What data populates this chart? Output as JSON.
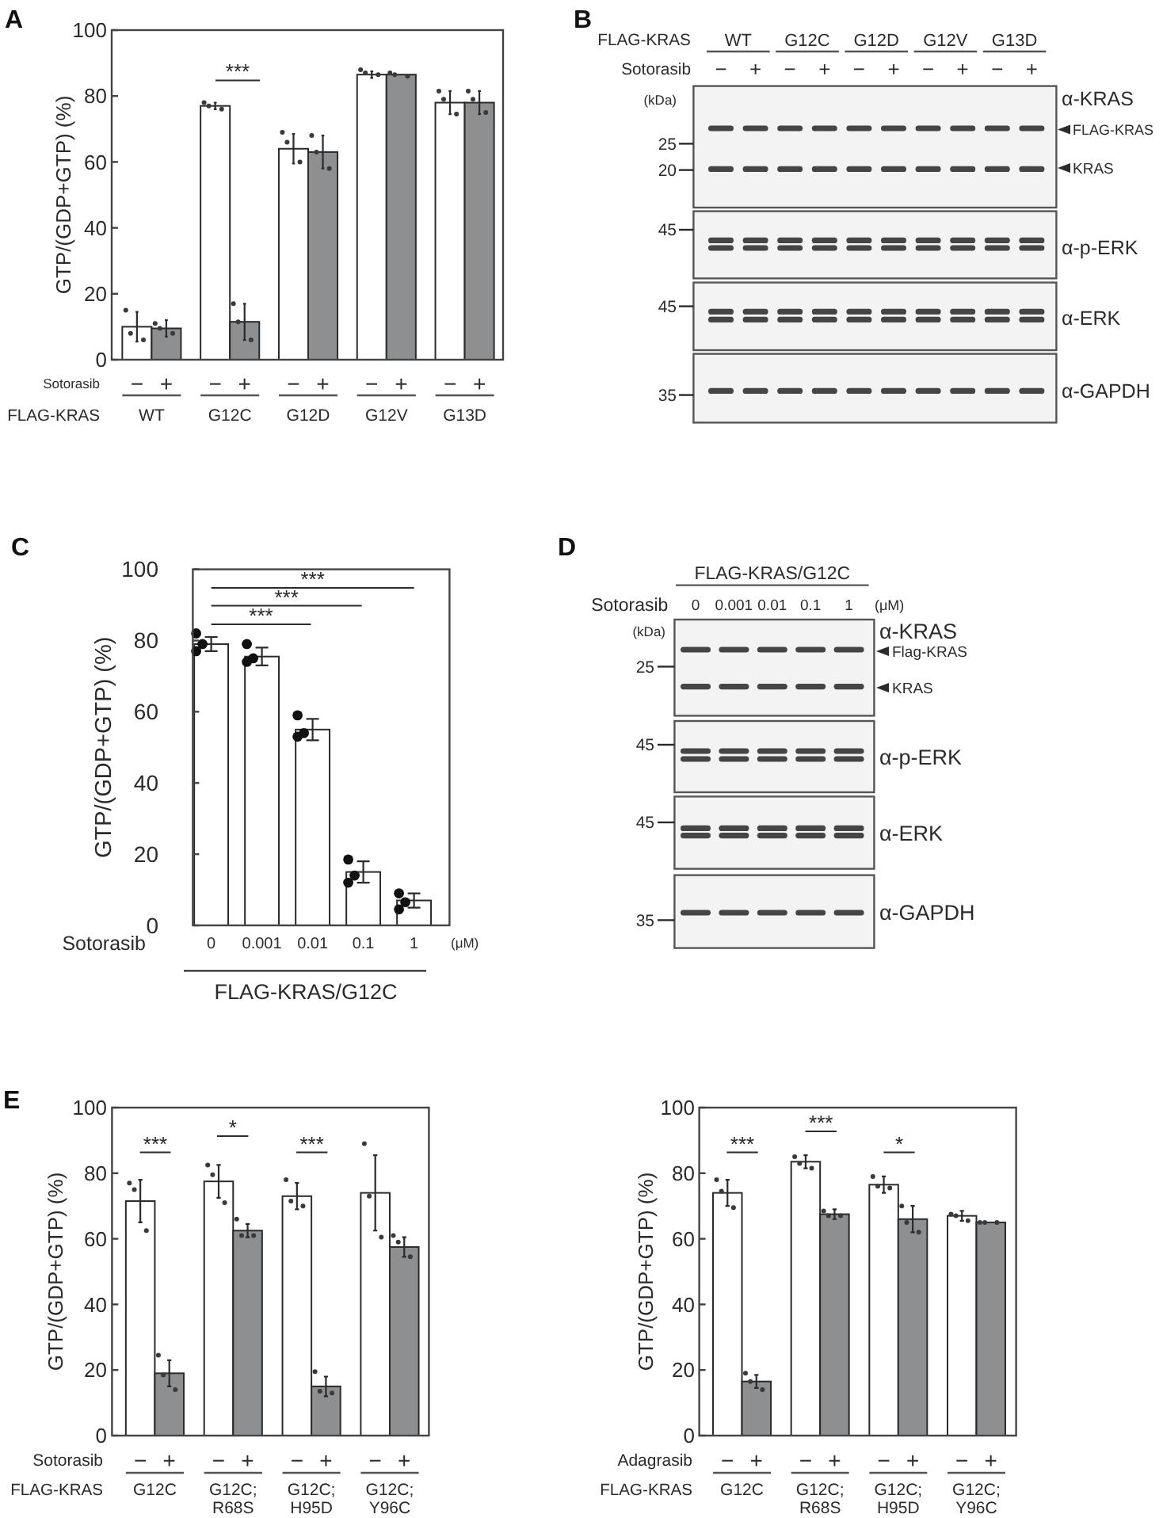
{
  "chart_data": [
    {
      "type": "bar",
      "title": "A",
      "ylabel": "GTP/(GDP+GTP) (%)",
      "xlabel": "FLAG-KRAS",
      "legend_title": "Sotorasib",
      "categories": [
        "WT",
        "G12C",
        "G12D",
        "G12V",
        "G13D"
      ],
      "ylim": [
        0,
        100
      ],
      "yticks": [
        0,
        20,
        40,
        60,
        80,
        100
      ],
      "marker": "circle",
      "series": [
        {
          "name": "−",
          "type": "bar",
          "color": "#ffffff",
          "values": [
            10,
            77,
            64,
            86.5,
            78
          ],
          "errors": [
            4.5,
            1,
            4.5,
            1,
            3.5
          ]
        },
        {
          "name": "+",
          "type": "bar",
          "color": "#8e8f91",
          "values": [
            9.5,
            11.5,
            63,
            86.5,
            78
          ],
          "errors": [
            2.5,
            5.5,
            5,
            null,
            3.5
          ]
        },
        {
          "type": "scatter",
          "color": "#3a3a3a",
          "x": [
            "WT",
            "WT",
            "WT",
            "G12C",
            "G12C",
            "G12C",
            "G12D",
            "G12D",
            "G12D",
            "G12V",
            "G12V",
            "G12V",
            "G13D",
            "G13D",
            "G13D"
          ],
          "values": [
            15,
            8,
            6,
            78,
            77,
            76,
            69,
            66,
            60,
            88,
            87,
            86.5,
            81.5,
            79,
            74.5
          ]
        },
        {
          "type": "scatter",
          "color": "#3a3a3a",
          "x": [
            "WT",
            "WT",
            "WT",
            "G12C",
            "G12C",
            "G12C",
            "G12D",
            "G12D",
            "G12D",
            "G12V",
            "G12V",
            "G12V",
            "G13D",
            "G13D",
            "G13D"
          ],
          "values": [
            11,
            9.5,
            8,
            17,
            11.5,
            6,
            68,
            63,
            58,
            87,
            86.5,
            86,
            81.5,
            79,
            75
          ]
        }
      ],
      "annotations": [
        "***"
      ]
    },
    {
      "type": "other",
      "title": "B",
      "annotations": [
        "FLAG-KRAS",
        "WT",
        "G12C",
        "G12D",
        "G12V",
        "G13D",
        "Sotorasib",
        "−",
        "+",
        "−",
        "+",
        "−",
        "+",
        "−",
        "+",
        "−",
        "+",
        "(kDa)",
        "25",
        "20",
        "45",
        "45",
        "35",
        "α-KRAS",
        "FLAG-KRAS",
        "KRAS",
        "α-p-ERK",
        "α-ERK",
        "α-GAPDH"
      ]
    },
    {
      "type": "bar",
      "title": "C",
      "ylabel": "GTP/(GDP+GTP) (%)",
      "xlabel": "Sotorasib",
      "categories": [
        "0",
        "0.001",
        "0.01",
        "0.1",
        "1"
      ],
      "ylim": [
        0,
        100
      ],
      "yticks": [
        0,
        20,
        40,
        60,
        80,
        100
      ],
      "marker": "circle",
      "series": [
        {
          "type": "bar",
          "color": "#ffffff",
          "values": [
            79,
            75.5,
            55,
            15,
            7
          ],
          "errors": [
            2,
            2.5,
            3,
            3,
            2
          ]
        },
        {
          "type": "scatter",
          "color": "#111111",
          "x": [
            "0",
            "0",
            "0",
            "0.001",
            "0.001",
            "0.001",
            "0.01",
            "0.01",
            "0.01",
            "0.1",
            "0.1",
            "0.1",
            "1",
            "1",
            "1"
          ],
          "values": [
            82,
            79,
            77,
            79,
            75,
            74,
            59,
            54,
            53,
            18.5,
            14,
            12,
            9,
            6.5,
            4.5
          ]
        }
      ],
      "annotations": [
        "***",
        "***",
        "***",
        "(μM)",
        "FLAG-KRAS/G12C"
      ]
    },
    {
      "type": "other",
      "title": "D",
      "annotations": [
        "FLAG-KRAS/G12C",
        "Sotorasib",
        "0",
        "0.001",
        "0.01",
        "0.1",
        "1",
        "(μM)",
        "(kDa)",
        "25",
        "45",
        "45",
        "35",
        "α-KRAS",
        "Flag-KRAS",
        "KRAS",
        "α-p-ERK",
        "α-ERK",
        "α-GAPDH"
      ]
    },
    {
      "type": "bar",
      "title": "E",
      "ylabel": "GTP/(GDP+GTP) (%)",
      "xlabel": "FLAG-KRAS",
      "legend_title": "Sotorasib",
      "categories": [
        "G12C",
        "G12C; R68S",
        "G12C; H95D",
        "G12C; Y96C"
      ],
      "ylim": [
        0,
        100
      ],
      "yticks": [
        0,
        20,
        40,
        60,
        80,
        100
      ],
      "marker": "circle",
      "series": [
        {
          "name": "−",
          "type": "bar",
          "color": "#ffffff",
          "values": [
            71.5,
            77.5,
            73,
            74
          ],
          "errors": [
            6.5,
            5,
            4,
            11.5
          ]
        },
        {
          "name": "+",
          "type": "bar",
          "color": "#8e8f91",
          "values": [
            19,
            62.5,
            15,
            57.5
          ],
          "errors": [
            4,
            2,
            3,
            3
          ]
        },
        {
          "type": "scatter",
          "color": "#3a3a3a",
          "x": [
            "G12C",
            "G12C",
            "G12C",
            "G12C; R68S",
            "G12C; R68S",
            "G12C; R68S",
            "G12C; H95D",
            "G12C; H95D",
            "G12C; H95D",
            "G12C; Y96C",
            "G12C; Y96C",
            "G12C; Y96C"
          ],
          "values": [
            77,
            75,
            62.5,
            82.5,
            79.5,
            71,
            78,
            71.5,
            70,
            89,
            73,
            60.5
          ]
        },
        {
          "type": "scatter",
          "color": "#3a3a3a",
          "x": [
            "G12C",
            "G12C",
            "G12C",
            "G12C; R68S",
            "G12C; R68S",
            "G12C; R68S",
            "G12C; H95D",
            "G12C; H95D",
            "G12C; H95D",
            "G12C; Y96C",
            "G12C; Y96C",
            "G12C; Y96C"
          ],
          "values": [
            24.5,
            18.5,
            14,
            66,
            61,
            61,
            19.5,
            13.5,
            13,
            61,
            59,
            54.5
          ]
        }
      ],
      "annotations": [
        "***",
        "*",
        "***"
      ]
    },
    {
      "type": "bar",
      "ylabel": "GTP/(GDP+GTP) (%)",
      "xlabel": "FLAG-KRAS",
      "legend_title": "Adagrasib",
      "categories": [
        "G12C",
        "G12C; R68S",
        "G12C; H95D",
        "G12C; Y96C"
      ],
      "ylim": [
        0,
        100
      ],
      "yticks": [
        0,
        20,
        40,
        60,
        80,
        100
      ],
      "marker": "circle",
      "series": [
        {
          "name": "−",
          "type": "bar",
          "color": "#ffffff",
          "values": [
            74,
            83.5,
            76.5,
            67
          ],
          "errors": [
            4,
            2,
            2.5,
            1.5
          ]
        },
        {
          "name": "+",
          "type": "bar",
          "color": "#8e8f91",
          "values": [
            16.5,
            67.5,
            66,
            65
          ],
          "errors": [
            2,
            1.5,
            4,
            null
          ]
        },
        {
          "type": "scatter",
          "color": "#3a3a3a",
          "x": [
            "G12C",
            "G12C",
            "G12C",
            "G12C; R68S",
            "G12C; R68S",
            "G12C; R68S",
            "G12C; H95D",
            "G12C; H95D",
            "G12C; H95D",
            "G12C; Y96C",
            "G12C; Y96C",
            "G12C; Y96C"
          ],
          "values": [
            78,
            74.5,
            69.5,
            85,
            83,
            81.5,
            79,
            76,
            75.5,
            67.5,
            67,
            65.5
          ]
        },
        {
          "type": "scatter",
          "color": "#3a3a3a",
          "x": [
            "G12C",
            "G12C",
            "G12C",
            "G12C; R68S",
            "G12C; R68S",
            "G12C; R68S",
            "G12C; H95D",
            "G12C; H95D",
            "G12C; H95D",
            "G12C; Y96C",
            "G12C; Y96C",
            "G12C; Y96C"
          ],
          "values": [
            19,
            16.5,
            14,
            68.5,
            67,
            67,
            70,
            65,
            62,
            65,
            65,
            65
          ]
        }
      ],
      "annotations": [
        "***",
        "***",
        "*"
      ]
    }
  ]
}
